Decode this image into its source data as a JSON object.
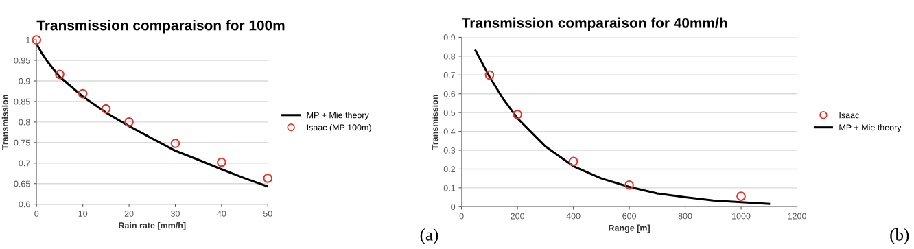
{
  "chart_data": [
    {
      "type": "line",
      "title": "Transmission comparaison for 100m",
      "xlabel": "Rain rate [mm/h]",
      "ylabel": "Transmission",
      "xlim": [
        0,
        50
      ],
      "xticks": [
        0,
        10,
        20,
        30,
        40,
        50
      ],
      "ylim": [
        0.6,
        1
      ],
      "yticks": [
        0.6,
        0.65,
        0.7,
        0.75,
        0.8,
        0.85,
        0.9,
        0.95,
        1
      ],
      "grid": "y",
      "legend": "right",
      "annotations": [
        "(a)"
      ],
      "series": [
        {
          "name": "MP + Mie theory",
          "color": "#000000",
          "marker": "none",
          "line_style": "solid",
          "x": [
            0,
            1,
            2.5,
            5,
            10,
            15,
            20,
            25,
            30,
            35,
            40,
            45,
            50
          ],
          "values": [
            0.99,
            0.97,
            0.945,
            0.91,
            0.862,
            0.823,
            0.79,
            0.76,
            0.73,
            0.708,
            0.685,
            0.663,
            0.643
          ]
        },
        {
          "name": "Isaac (MP 100m)",
          "type": "scatter",
          "color": "#e8332a",
          "marker": "circle",
          "x": [
            0,
            5,
            10,
            15,
            20,
            30,
            40,
            50
          ],
          "values": [
            1.0,
            0.916,
            0.869,
            0.832,
            0.8,
            0.748,
            0.702,
            0.663
          ]
        }
      ]
    },
    {
      "type": "line",
      "title": "Transmission comparaison for 40mm/h",
      "xlabel": "Range [m]",
      "ylabel": "Transmission",
      "xlim": [
        0,
        1200
      ],
      "xticks": [
        0,
        200,
        400,
        600,
        800,
        1000,
        1200
      ],
      "ylim": [
        0,
        0.9
      ],
      "yticks": [
        0,
        0.1,
        0.2,
        0.3,
        0.4,
        0.5,
        0.6,
        0.7,
        0.8,
        0.9
      ],
      "grid": "y",
      "legend": "right",
      "annotations": [
        "(b)"
      ],
      "series": [
        {
          "name": "Isaac",
          "type": "scatter",
          "color": "#e8332a",
          "marker": "circle",
          "x": [
            100,
            200,
            400,
            600,
            1000
          ],
          "values": [
            0.7,
            0.49,
            0.24,
            0.115,
            0.055
          ]
        },
        {
          "name": "MP + Mie theory",
          "color": "#000000",
          "marker": "none",
          "line_style": "solid",
          "x": [
            50,
            100,
            150,
            200,
            300,
            400,
            500,
            600,
            700,
            800,
            900,
            1000,
            1100
          ],
          "values": [
            0.83,
            0.69,
            0.57,
            0.47,
            0.32,
            0.215,
            0.15,
            0.105,
            0.07,
            0.05,
            0.033,
            0.024,
            0.015
          ]
        }
      ]
    }
  ]
}
